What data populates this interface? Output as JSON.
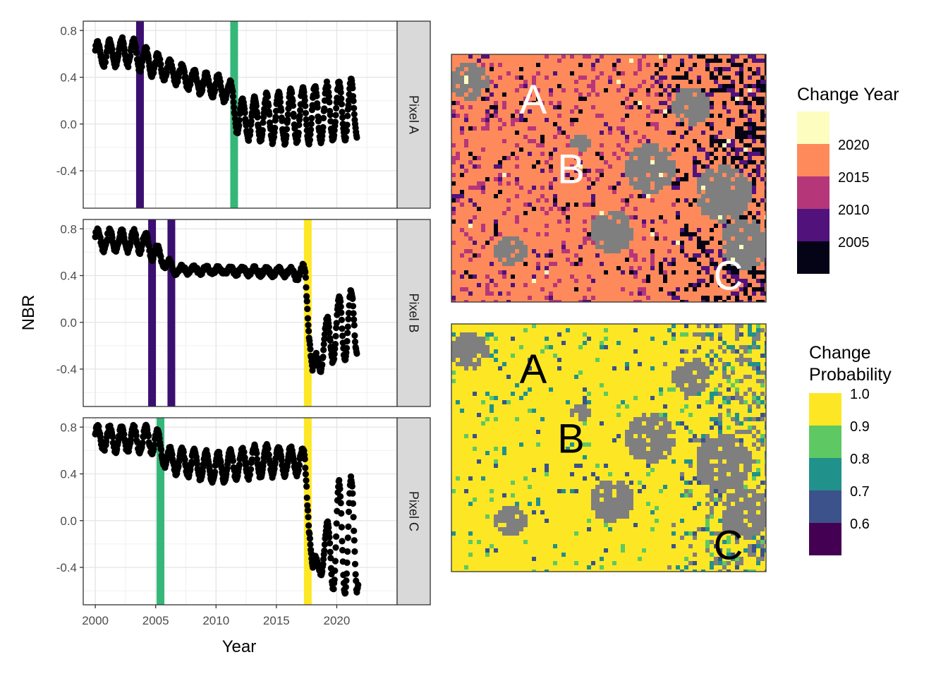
{
  "chart_data": [
    {
      "type": "scatter",
      "xlabel": "Year",
      "ylabel": "NBR",
      "xlim": [
        1999,
        2025
      ],
      "x_ticks": [
        2000,
        2005,
        2010,
        2015,
        2020
      ],
      "y_ticks": [
        0.8,
        0.4,
        0.0,
        -0.4
      ],
      "y_tick_labels": [
        "0.8",
        "0.4",
        "0.0",
        "-0.4"
      ],
      "grid": true,
      "facets": [
        {
          "label": "Pixel A",
          "ylim": [
            -0.72,
            0.88
          ],
          "change_lines": [
            {
              "year": 2003.7,
              "color": "#3b0f70"
            },
            {
              "year": 2011.5,
              "color": "#35b779"
            }
          ],
          "series_approx": [
            {
              "x": 2000.0,
              "y_low": 0.5,
              "y_high": 0.7
            },
            {
              "x": 2003.0,
              "y_low": 0.5,
              "y_high": 0.74
            },
            {
              "x": 2004.0,
              "y_low": 0.44,
              "y_high": 0.66
            },
            {
              "x": 2006.0,
              "y_low": 0.38,
              "y_high": 0.55
            },
            {
              "x": 2008.0,
              "y_low": 0.29,
              "y_high": 0.46
            },
            {
              "x": 2010.0,
              "y_low": 0.22,
              "y_high": 0.42
            },
            {
              "x": 2011.3,
              "y_low": 0.18,
              "y_high": 0.35
            },
            {
              "x": 2011.8,
              "y_low": -0.12,
              "y_high": 0.2
            },
            {
              "x": 2015.0,
              "y_low": -0.16,
              "y_high": 0.27
            },
            {
              "x": 2018.0,
              "y_low": -0.16,
              "y_high": 0.33
            },
            {
              "x": 2021.7,
              "y_low": -0.12,
              "y_high": 0.38
            }
          ]
        },
        {
          "label": "Pixel B",
          "ylim": [
            -0.72,
            0.88
          ],
          "change_lines": [
            {
              "year": 2004.7,
              "color": "#3b0f70"
            },
            {
              "year": 2006.3,
              "color": "#3b0f70"
            },
            {
              "year": 2017.6,
              "color": "#fde725"
            }
          ],
          "series_approx": [
            {
              "x": 2000.0,
              "y_low": 0.62,
              "y_high": 0.79
            },
            {
              "x": 2004.0,
              "y_low": 0.6,
              "y_high": 0.78
            },
            {
              "x": 2005.5,
              "y_low": 0.48,
              "y_high": 0.62
            },
            {
              "x": 2006.5,
              "y_low": 0.42,
              "y_high": 0.48
            },
            {
              "x": 2010.0,
              "y_low": 0.42,
              "y_high": 0.47
            },
            {
              "x": 2016.0,
              "y_low": 0.4,
              "y_high": 0.46
            },
            {
              "x": 2017.4,
              "y_low": 0.33,
              "y_high": 0.49
            },
            {
              "x": 2018.0,
              "y_low": -0.54,
              "y_high": -0.35
            },
            {
              "x": 2019.0,
              "y_low": -0.35,
              "y_high": 0.0
            },
            {
              "x": 2020.5,
              "y_low": -0.33,
              "y_high": 0.27
            },
            {
              "x": 2021.7,
              "y_low": -0.28,
              "y_high": 0.28
            }
          ]
        },
        {
          "label": "Pixel C",
          "ylim": [
            -0.72,
            0.88
          ],
          "change_lines": [
            {
              "year": 2005.4,
              "color": "#35b779"
            },
            {
              "year": 2017.6,
              "color": "#fde725"
            }
          ],
          "series_approx": [
            {
              "x": 2000.0,
              "y_low": 0.6,
              "y_high": 0.81
            },
            {
              "x": 2005.0,
              "y_low": 0.58,
              "y_high": 0.8
            },
            {
              "x": 2006.0,
              "y_low": 0.42,
              "y_high": 0.62
            },
            {
              "x": 2010.0,
              "y_low": 0.33,
              "y_high": 0.58
            },
            {
              "x": 2014.0,
              "y_low": 0.38,
              "y_high": 0.65
            },
            {
              "x": 2017.3,
              "y_low": 0.4,
              "y_high": 0.62
            },
            {
              "x": 2017.5,
              "y_low": 0.2,
              "y_high": 0.5
            },
            {
              "x": 2018.0,
              "y_low": -0.48,
              "y_high": -0.38
            },
            {
              "x": 2019.0,
              "y_low": -0.45,
              "y_high": -0.1
            },
            {
              "x": 2020.0,
              "y_low": -0.65,
              "y_high": 0.33
            },
            {
              "x": 2021.8,
              "y_low": -0.6,
              "y_high": 0.38
            }
          ]
        }
      ]
    },
    {
      "type": "heatmap",
      "legend_title": "Change Year",
      "legend_position": "right",
      "no_data_color": "#7f7f7f",
      "legend_entries": [
        {
          "label": "",
          "color": "#fcfdbf"
        },
        {
          "label": "2020",
          "color": "#fe8a5b"
        },
        {
          "label": "2015",
          "color": "#b6367a"
        },
        {
          "label": "2010",
          "color": "#51127c"
        },
        {
          "label": "2005",
          "color": "#050416"
        }
      ],
      "annotations": [
        "A",
        "B",
        "C"
      ]
    },
    {
      "type": "heatmap",
      "legend_title": "Change\nProbability",
      "legend_position": "right",
      "no_data_color": "#7f7f7f",
      "legend_entries": [
        {
          "label": "1.0",
          "color": "#fde725"
        },
        {
          "label": "0.9",
          "color": "#5ec962"
        },
        {
          "label": "0.8",
          "color": "#21918c"
        },
        {
          "label": "0.7",
          "color": "#3b528b"
        },
        {
          "label": "0.6",
          "color": "#440154"
        }
      ],
      "annotations": [
        "A",
        "B",
        "C"
      ]
    }
  ]
}
